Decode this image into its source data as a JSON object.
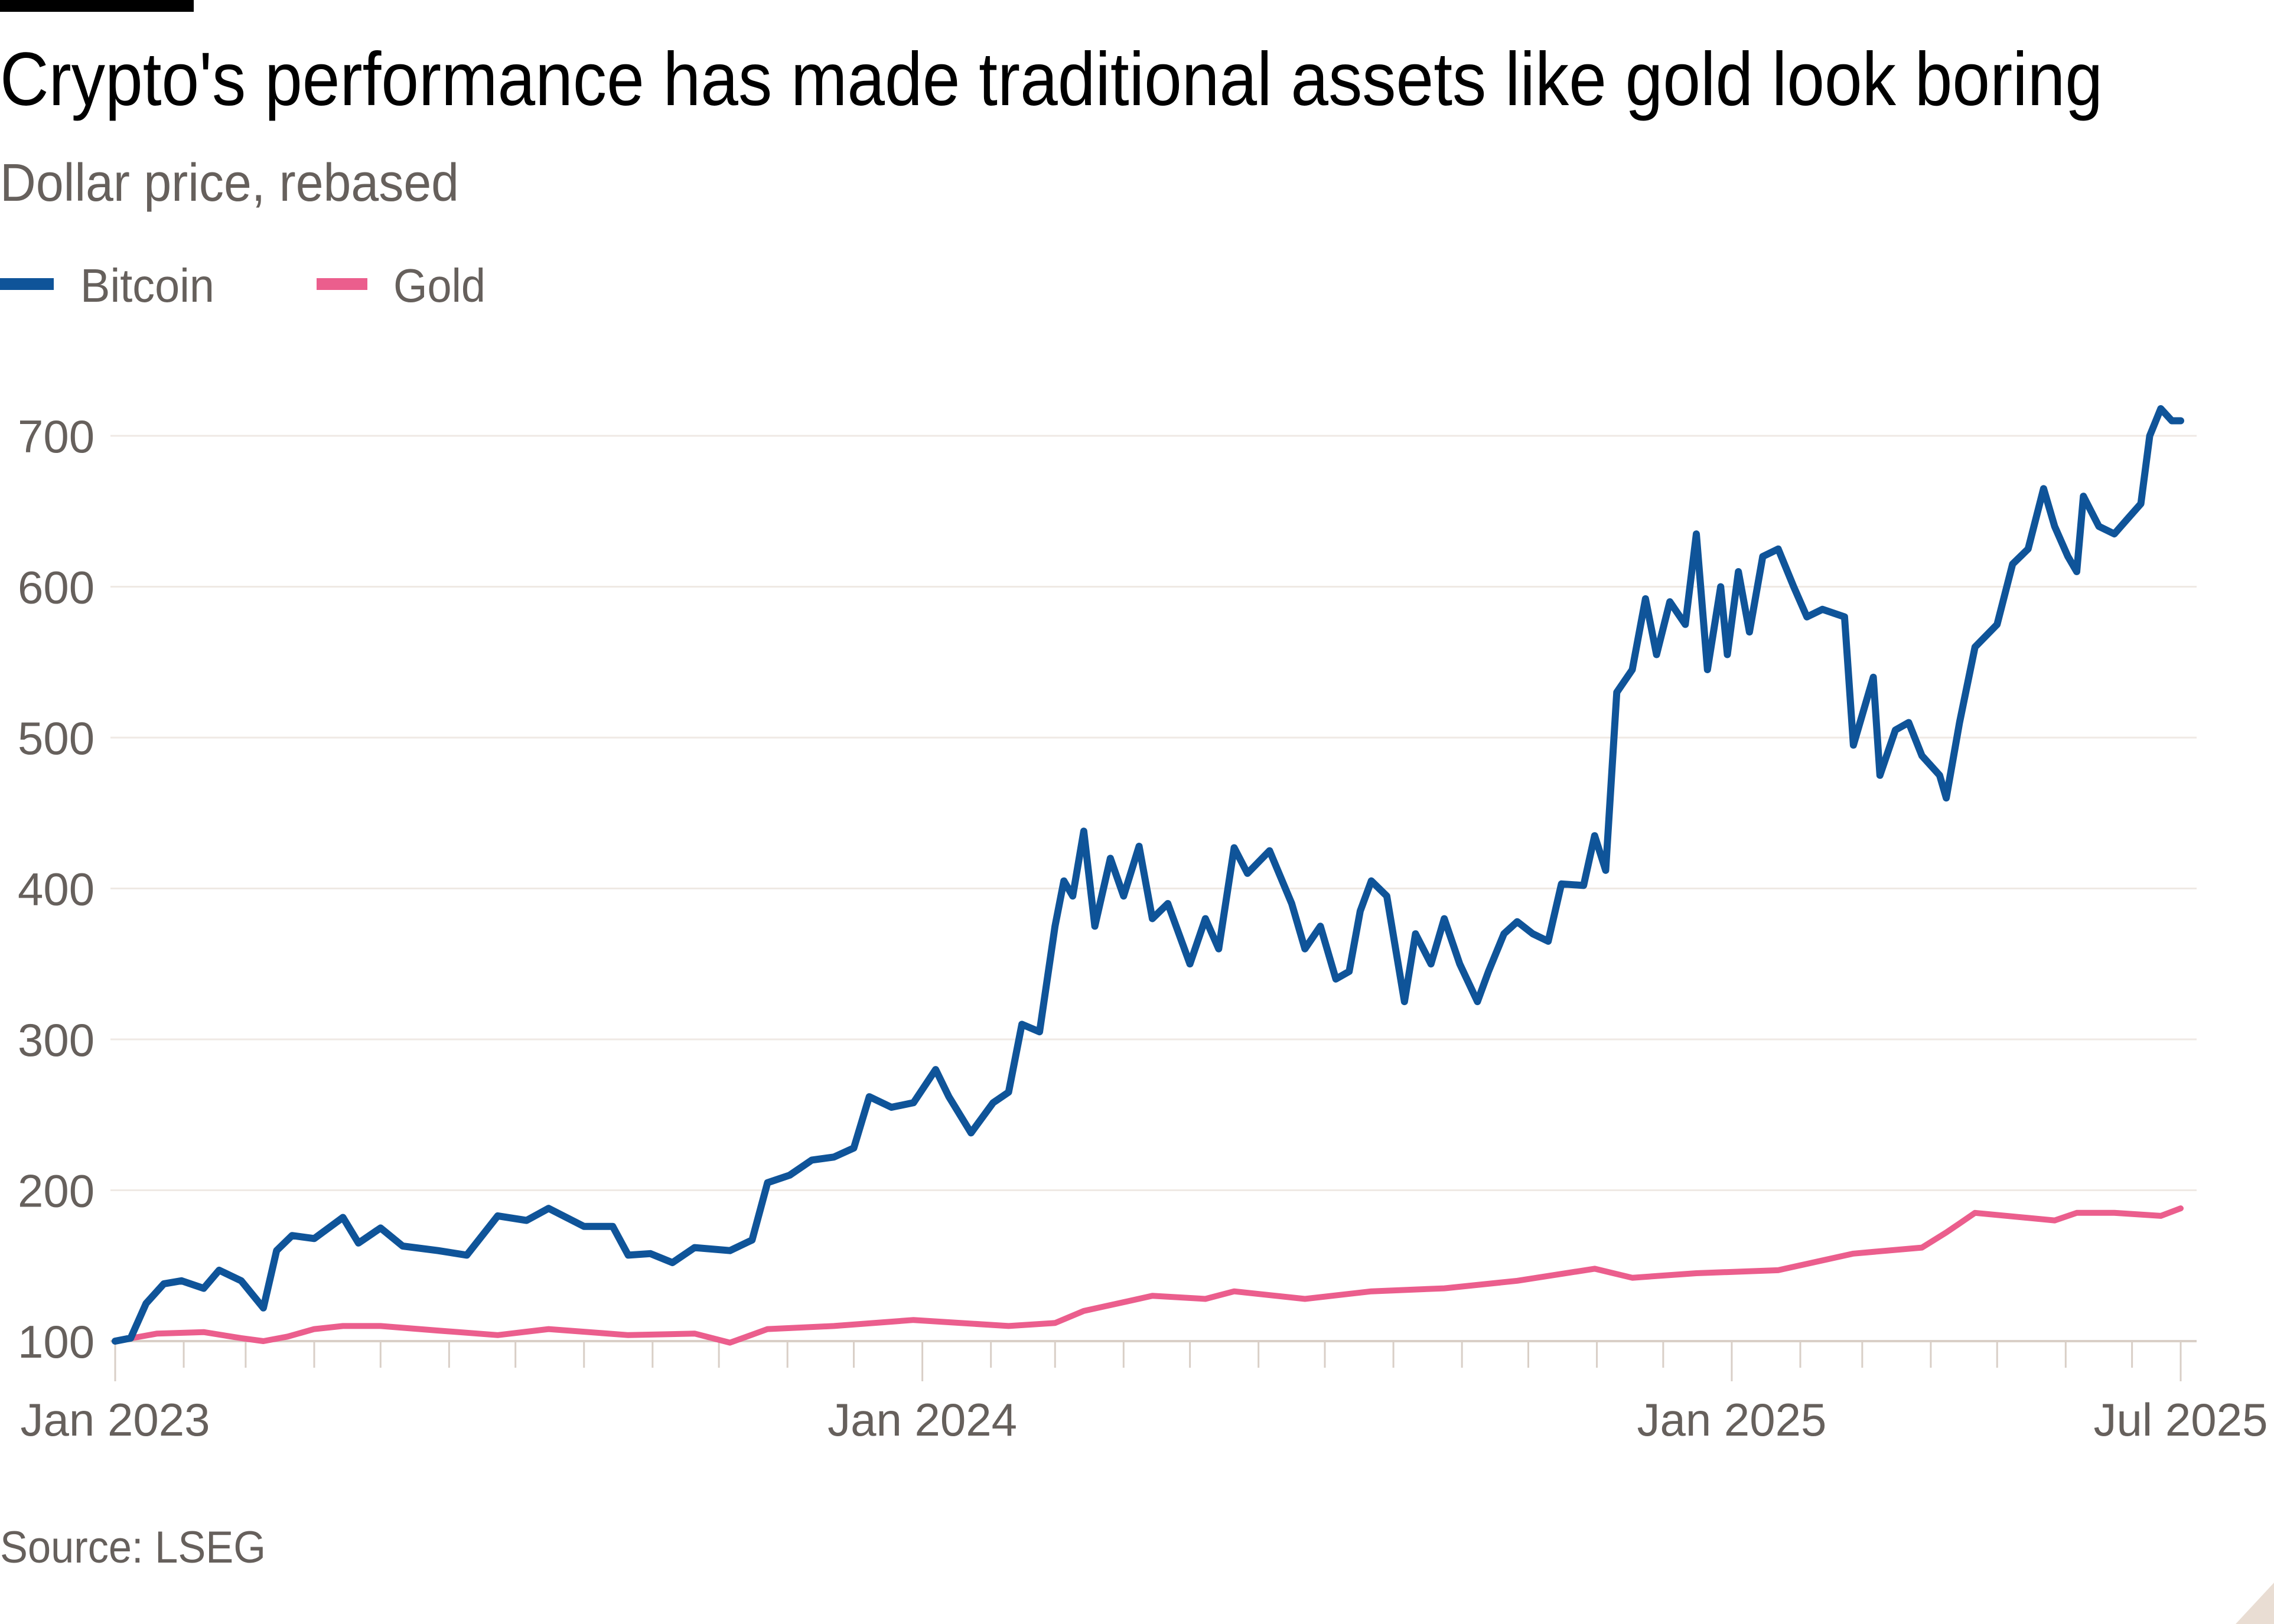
{
  "chart_data": {
    "type": "line",
    "title": "Crypto's performance has made traditional assets like gold look boring",
    "subtitle": "Dollar price, rebased",
    "source": "Source: LSEG",
    "ylim": [
      100,
      700
    ],
    "y_ticks": [
      {
        "value": 100,
        "label": "100"
      },
      {
        "value": 200,
        "label": "200"
      },
      {
        "value": 300,
        "label": "300"
      },
      {
        "value": 400,
        "label": "400"
      },
      {
        "value": 500,
        "label": "500"
      },
      {
        "value": 600,
        "label": "600"
      },
      {
        "value": 700,
        "label": "700"
      }
    ],
    "x_range": [
      "2023-01-01",
      "2025-07-23"
    ],
    "x_ticks": [
      {
        "date": "2023-01-01",
        "label": "Jan 2023"
      },
      {
        "date": "2024-01-01",
        "label": "Jan 2024"
      },
      {
        "date": "2025-01-01",
        "label": "Jan 2025"
      },
      {
        "date": "2025-07-23",
        "label": "Jul 2025"
      }
    ],
    "grid": true,
    "legend_placement": "top-left",
    "series": [
      {
        "name": "Bitcoin",
        "color": "#0f5499",
        "points": [
          [
            "2023-01-01",
            100
          ],
          [
            "2023-01-08",
            102
          ],
          [
            "2023-01-15",
            125
          ],
          [
            "2023-01-23",
            138
          ],
          [
            "2023-01-31",
            140
          ],
          [
            "2023-02-10",
            135
          ],
          [
            "2023-02-17",
            147
          ],
          [
            "2023-02-27",
            140
          ],
          [
            "2023-03-09",
            122
          ],
          [
            "2023-03-15",
            160
          ],
          [
            "2023-03-22",
            170
          ],
          [
            "2023-04-01",
            168
          ],
          [
            "2023-04-14",
            182
          ],
          [
            "2023-04-21",
            165
          ],
          [
            "2023-05-01",
            175
          ],
          [
            "2023-05-11",
            163
          ],
          [
            "2023-05-27",
            160
          ],
          [
            "2023-06-09",
            157
          ],
          [
            "2023-06-23",
            183
          ],
          [
            "2023-07-06",
            180
          ],
          [
            "2023-07-16",
            188
          ],
          [
            "2023-08-01",
            176
          ],
          [
            "2023-08-14",
            176
          ],
          [
            "2023-08-21",
            157
          ],
          [
            "2023-08-31",
            158
          ],
          [
            "2023-09-10",
            152
          ],
          [
            "2023-09-20",
            162
          ],
          [
            "2023-10-06",
            160
          ],
          [
            "2023-10-16",
            167
          ],
          [
            "2023-10-23",
            205
          ],
          [
            "2023-11-02",
            210
          ],
          [
            "2023-11-12",
            220
          ],
          [
            "2023-11-22",
            222
          ],
          [
            "2023-12-01",
            228
          ],
          [
            "2023-12-08",
            262
          ],
          [
            "2023-12-18",
            255
          ],
          [
            "2023-12-28",
            258
          ],
          [
            "2024-01-07",
            280
          ],
          [
            "2024-01-13",
            262
          ],
          [
            "2024-01-23",
            238
          ],
          [
            "2024-02-02",
            258
          ],
          [
            "2024-02-09",
            265
          ],
          [
            "2024-02-15",
            310
          ],
          [
            "2024-02-23",
            305
          ],
          [
            "2024-03-01",
            375
          ],
          [
            "2024-03-05",
            405
          ],
          [
            "2024-03-09",
            395
          ],
          [
            "2024-03-14",
            438
          ],
          [
            "2024-03-19",
            375
          ],
          [
            "2024-03-26",
            420
          ],
          [
            "2024-04-01",
            395
          ],
          [
            "2024-04-08",
            428
          ],
          [
            "2024-04-14",
            380
          ],
          [
            "2024-04-21",
            390
          ],
          [
            "2024-05-01",
            350
          ],
          [
            "2024-05-08",
            380
          ],
          [
            "2024-05-14",
            360
          ],
          [
            "2024-05-21",
            427
          ],
          [
            "2024-05-27",
            410
          ],
          [
            "2024-06-06",
            425
          ],
          [
            "2024-06-16",
            390
          ],
          [
            "2024-06-22",
            360
          ],
          [
            "2024-06-29",
            375
          ],
          [
            "2024-07-06",
            340
          ],
          [
            "2024-07-12",
            345
          ],
          [
            "2024-07-17",
            385
          ],
          [
            "2024-07-22",
            405
          ],
          [
            "2024-07-29",
            395
          ],
          [
            "2024-08-06",
            325
          ],
          [
            "2024-08-11",
            370
          ],
          [
            "2024-08-18",
            350
          ],
          [
            "2024-08-24",
            380
          ],
          [
            "2024-08-31",
            350
          ],
          [
            "2024-09-08",
            325
          ],
          [
            "2024-09-13",
            345
          ],
          [
            "2024-09-20",
            370
          ],
          [
            "2024-09-26",
            378
          ],
          [
            "2024-10-03",
            370
          ],
          [
            "2024-10-10",
            365
          ],
          [
            "2024-10-16",
            403
          ],
          [
            "2024-10-26",
            402
          ],
          [
            "2024-10-31",
            435
          ],
          [
            "2024-11-05",
            412
          ],
          [
            "2024-11-10",
            530
          ],
          [
            "2024-11-17",
            545
          ],
          [
            "2024-11-23",
            592
          ],
          [
            "2024-11-28",
            555
          ],
          [
            "2024-12-04",
            590
          ],
          [
            "2024-12-11",
            575
          ],
          [
            "2024-12-16",
            635
          ],
          [
            "2024-12-21",
            545
          ],
          [
            "2024-12-27",
            600
          ],
          [
            "2024-12-30",
            555
          ],
          [
            "2025-01-04",
            610
          ],
          [
            "2025-01-09",
            570
          ],
          [
            "2025-01-15",
            620
          ],
          [
            "2025-01-22",
            625
          ],
          [
            "2025-01-29",
            600
          ],
          [
            "2025-02-04",
            580
          ],
          [
            "2025-02-11",
            585
          ],
          [
            "2025-02-21",
            580
          ],
          [
            "2025-02-25",
            495
          ],
          [
            "2025-03-06",
            540
          ],
          [
            "2025-03-09",
            475
          ],
          [
            "2025-03-16",
            505
          ],
          [
            "2025-03-22",
            510
          ],
          [
            "2025-03-28",
            488
          ],
          [
            "2025-04-05",
            475
          ],
          [
            "2025-04-08",
            460
          ],
          [
            "2025-04-14",
            510
          ],
          [
            "2025-04-21",
            560
          ],
          [
            "2025-05-01",
            575
          ],
          [
            "2025-05-08",
            615
          ],
          [
            "2025-05-15",
            625
          ],
          [
            "2025-05-22",
            665
          ],
          [
            "2025-05-27",
            640
          ],
          [
            "2025-06-02",
            620
          ],
          [
            "2025-06-06",
            610
          ],
          [
            "2025-06-09",
            660
          ],
          [
            "2025-06-16",
            640
          ],
          [
            "2025-06-23",
            635
          ],
          [
            "2025-06-29",
            645
          ],
          [
            "2025-07-05",
            655
          ],
          [
            "2025-07-09",
            700
          ],
          [
            "2025-07-14",
            718
          ],
          [
            "2025-07-19",
            710
          ],
          [
            "2025-07-23",
            710
          ]
        ]
      },
      {
        "name": "Gold",
        "color": "#eb5e8d",
        "points": [
          [
            "2023-01-01",
            100
          ],
          [
            "2023-01-20",
            105
          ],
          [
            "2023-02-10",
            106
          ],
          [
            "2023-02-27",
            102
          ],
          [
            "2023-03-09",
            100
          ],
          [
            "2023-03-20",
            103
          ],
          [
            "2023-04-01",
            108
          ],
          [
            "2023-04-14",
            110
          ],
          [
            "2023-05-01",
            110
          ],
          [
            "2023-05-27",
            107
          ],
          [
            "2023-06-23",
            104
          ],
          [
            "2023-07-16",
            108
          ],
          [
            "2023-08-21",
            104
          ],
          [
            "2023-09-20",
            105
          ],
          [
            "2023-10-06",
            99
          ],
          [
            "2023-10-23",
            108
          ],
          [
            "2023-11-22",
            110
          ],
          [
            "2023-12-28",
            114
          ],
          [
            "2024-02-09",
            110
          ],
          [
            "2024-03-01",
            112
          ],
          [
            "2024-03-14",
            120
          ],
          [
            "2024-04-14",
            130
          ],
          [
            "2024-05-08",
            128
          ],
          [
            "2024-05-21",
            133
          ],
          [
            "2024-06-22",
            128
          ],
          [
            "2024-07-22",
            133
          ],
          [
            "2024-08-24",
            135
          ],
          [
            "2024-09-26",
            140
          ],
          [
            "2024-10-31",
            148
          ],
          [
            "2024-11-17",
            142
          ],
          [
            "2024-12-16",
            145
          ],
          [
            "2025-01-22",
            147
          ],
          [
            "2025-02-25",
            158
          ],
          [
            "2025-03-28",
            162
          ],
          [
            "2025-04-08",
            172
          ],
          [
            "2025-04-14",
            178
          ],
          [
            "2025-04-21",
            185
          ],
          [
            "2025-05-27",
            180
          ],
          [
            "2025-06-06",
            185
          ],
          [
            "2025-06-23",
            185
          ],
          [
            "2025-07-14",
            183
          ],
          [
            "2025-07-23",
            188
          ]
        ]
      }
    ]
  }
}
